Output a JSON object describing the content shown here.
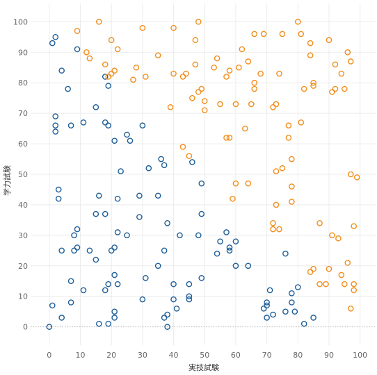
{
  "chart_data": {
    "type": "scatter",
    "title": "",
    "xlabel": "実技試験",
    "ylabel": "学力試験",
    "xlim": [
      -6,
      105
    ],
    "ylim": [
      -6,
      106
    ],
    "xticks": [
      0,
      10,
      20,
      30,
      40,
      50,
      60,
      70,
      80,
      90,
      100
    ],
    "yticks": [
      0,
      10,
      20,
      30,
      40,
      50,
      60,
      70,
      80,
      90,
      100
    ],
    "grid": true,
    "legend": "none",
    "series": [
      {
        "color": "#1f5f99",
        "marker": "open-circle",
        "points": [
          [
            0,
            0
          ],
          [
            1,
            7
          ],
          [
            1,
            93
          ],
          [
            2,
            95
          ],
          [
            2,
            69
          ],
          [
            2,
            66
          ],
          [
            2,
            64
          ],
          [
            3,
            45
          ],
          [
            3,
            42
          ],
          [
            4,
            84
          ],
          [
            4,
            25
          ],
          [
            4,
            3
          ],
          [
            6,
            78
          ],
          [
            7,
            66
          ],
          [
            7,
            15
          ],
          [
            7,
            8
          ],
          [
            8,
            30
          ],
          [
            8,
            25
          ],
          [
            9,
            91
          ],
          [
            9,
            32
          ],
          [
            9,
            26
          ],
          [
            11,
            67
          ],
          [
            11,
            12
          ],
          [
            13,
            25
          ],
          [
            15,
            72
          ],
          [
            15,
            37
          ],
          [
            15,
            22
          ],
          [
            16,
            43
          ],
          [
            16,
            1
          ],
          [
            18,
            82
          ],
          [
            18,
            67
          ],
          [
            18,
            37
          ],
          [
            18,
            12
          ],
          [
            19,
            79
          ],
          [
            19,
            66
          ],
          [
            19,
            14
          ],
          [
            19,
            1
          ],
          [
            20,
            25
          ],
          [
            21,
            61
          ],
          [
            21,
            26
          ],
          [
            21,
            17
          ],
          [
            21,
            5
          ],
          [
            21,
            3
          ],
          [
            22,
            42
          ],
          [
            22,
            31
          ],
          [
            22,
            14
          ],
          [
            23,
            51
          ],
          [
            25,
            63
          ],
          [
            25,
            30
          ],
          [
            26,
            61
          ],
          [
            29,
            43
          ],
          [
            29,
            36
          ],
          [
            30,
            66
          ],
          [
            30,
            9
          ],
          [
            31,
            16
          ],
          [
            32,
            52
          ],
          [
            35,
            43
          ],
          [
            35,
            20
          ],
          [
            36,
            55
          ],
          [
            37,
            53
          ],
          [
            37,
            25
          ],
          [
            37,
            3
          ],
          [
            38,
            34
          ],
          [
            38,
            4
          ],
          [
            38,
            0
          ],
          [
            40,
            14
          ],
          [
            40,
            9
          ],
          [
            41,
            6
          ],
          [
            42,
            30
          ],
          [
            45,
            14
          ],
          [
            45,
            10
          ],
          [
            45,
            9
          ],
          [
            46,
            54
          ],
          [
            48,
            30
          ],
          [
            49,
            47
          ],
          [
            49,
            37
          ],
          [
            49,
            16
          ],
          [
            54,
            24
          ],
          [
            55,
            28
          ],
          [
            57,
            31
          ],
          [
            58,
            26
          ],
          [
            58,
            25
          ],
          [
            60,
            28
          ],
          [
            60,
            20
          ],
          [
            64,
            20
          ],
          [
            69,
            6
          ],
          [
            70,
            8
          ],
          [
            70,
            7
          ],
          [
            70,
            3
          ],
          [
            71,
            12
          ],
          [
            72,
            4
          ],
          [
            76,
            24
          ],
          [
            76,
            5
          ],
          [
            78,
            11
          ],
          [
            78,
            8
          ],
          [
            79,
            5
          ],
          [
            80,
            13
          ],
          [
            82,
            1
          ],
          [
            85,
            3
          ]
        ]
      },
      {
        "color": "#f28e1c",
        "marker": "open-circle",
        "points": [
          [
            9,
            97
          ],
          [
            12,
            90
          ],
          [
            13,
            88
          ],
          [
            16,
            100
          ],
          [
            18,
            86
          ],
          [
            19,
            82
          ],
          [
            20,
            94
          ],
          [
            20,
            83
          ],
          [
            21,
            84
          ],
          [
            22,
            91
          ],
          [
            27,
            81
          ],
          [
            28,
            85
          ],
          [
            30,
            98
          ],
          [
            31,
            82
          ],
          [
            35,
            89
          ],
          [
            39,
            72
          ],
          [
            40,
            98
          ],
          [
            40,
            83
          ],
          [
            43,
            82
          ],
          [
            43,
            59
          ],
          [
            44,
            83
          ],
          [
            45,
            56
          ],
          [
            46,
            75
          ],
          [
            47,
            94
          ],
          [
            47,
            86
          ],
          [
            48,
            100
          ],
          [
            48,
            77
          ],
          [
            49,
            78
          ],
          [
            50,
            74
          ],
          [
            50,
            71
          ],
          [
            53,
            85
          ],
          [
            54,
            88
          ],
          [
            55,
            73
          ],
          [
            57,
            82
          ],
          [
            57,
            62
          ],
          [
            58,
            84
          ],
          [
            58,
            62
          ],
          [
            59,
            42
          ],
          [
            60,
            73
          ],
          [
            60,
            47
          ],
          [
            61,
            85
          ],
          [
            62,
            91
          ],
          [
            63,
            65
          ],
          [
            64,
            87
          ],
          [
            64,
            47
          ],
          [
            65,
            73
          ],
          [
            66,
            96
          ],
          [
            66,
            80
          ],
          [
            66,
            78
          ],
          [
            68,
            83
          ],
          [
            69,
            96
          ],
          [
            72,
            72
          ],
          [
            72,
            34
          ],
          [
            72,
            32
          ],
          [
            73,
            73
          ],
          [
            73,
            51
          ],
          [
            73,
            40
          ],
          [
            74,
            83
          ],
          [
            74,
            32
          ],
          [
            75,
            96
          ],
          [
            75,
            52
          ],
          [
            77,
            66
          ],
          [
            77,
            62
          ],
          [
            78,
            55
          ],
          [
            78,
            46
          ],
          [
            78,
            41
          ],
          [
            80,
            100
          ],
          [
            81,
            96
          ],
          [
            81,
            67
          ],
          [
            82,
            78
          ],
          [
            84,
            93
          ],
          [
            84,
            89
          ],
          [
            84,
            18
          ],
          [
            85,
            80
          ],
          [
            85,
            79
          ],
          [
            85,
            19
          ],
          [
            87,
            34
          ],
          [
            87,
            14
          ],
          [
            89,
            14
          ],
          [
            90,
            94
          ],
          [
            90,
            19
          ],
          [
            91,
            77
          ],
          [
            91,
            30
          ],
          [
            92,
            86
          ],
          [
            92,
            78
          ],
          [
            93,
            29
          ],
          [
            94,
            83
          ],
          [
            94,
            17
          ],
          [
            95,
            78
          ],
          [
            95,
            14
          ],
          [
            96,
            90
          ],
          [
            96,
            21
          ],
          [
            97,
            87
          ],
          [
            97,
            50
          ],
          [
            97,
            6
          ],
          [
            98,
            33
          ],
          [
            98,
            14
          ],
          [
            98,
            12
          ],
          [
            99,
            49
          ]
        ]
      }
    ]
  }
}
